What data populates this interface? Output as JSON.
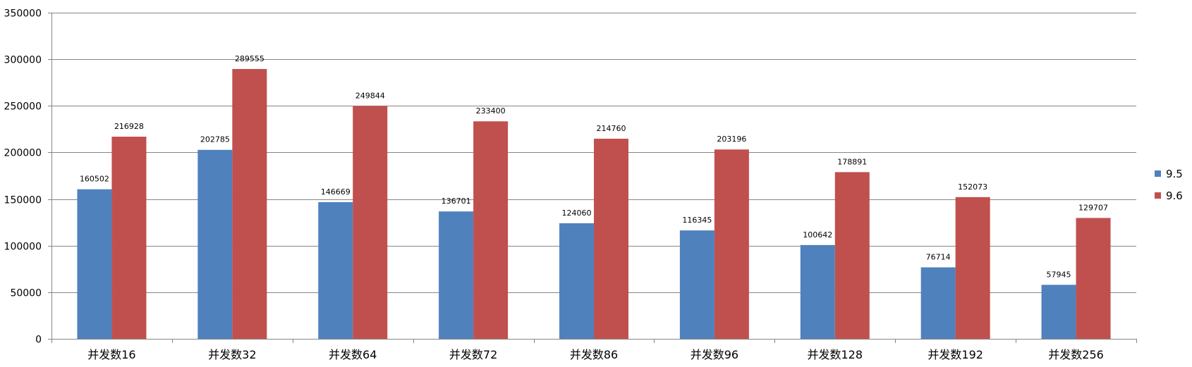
{
  "chart_data": {
    "type": "bar",
    "categories": [
      "并发数16",
      "并发数32",
      "并发数64",
      "并发数72",
      "并发数86",
      "并发数96",
      "并发数128",
      "并发数192",
      "并发数256"
    ],
    "series": [
      {
        "name": "9.5",
        "color": "#4f81bd",
        "values": [
          160502,
          202785,
          146669,
          136701,
          124060,
          116345,
          100642,
          76714,
          57945
        ]
      },
      {
        "name": "9.6",
        "color": "#c0504d",
        "values": [
          216928,
          289555,
          249844,
          233400,
          214760,
          203196,
          178891,
          152073,
          129707
        ]
      }
    ],
    "ylim": [
      0,
      350000
    ],
    "yticks": [
      0,
      50000,
      100000,
      150000,
      200000,
      250000,
      300000,
      350000
    ],
    "ytick_labels": [
      "0",
      "50000",
      "100000",
      "150000",
      "200000",
      "250000",
      "300000",
      "350000"
    ],
    "grid": true,
    "legend_position": "right",
    "data_labels": true
  }
}
